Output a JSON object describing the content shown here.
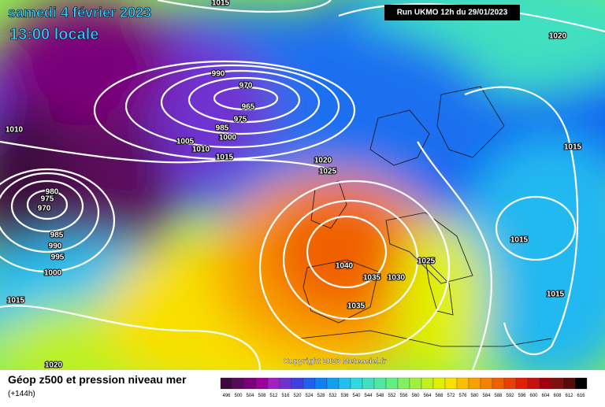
{
  "header": {
    "date": "samedi 4 février 2023",
    "time": "13:00 locale",
    "run": "Run UKMO 12h du 29/01/2023"
  },
  "isobars": {
    "labels": [
      "1015",
      "1020",
      "990",
      "970",
      "965",
      "975",
      "985",
      "1000",
      "1005",
      "1010",
      "1015",
      "1010",
      "1020",
      "1025",
      "980",
      "975",
      "970",
      "985",
      "990",
      "995",
      "1000",
      "1015",
      "1040",
      "1035",
      "1030",
      "1025",
      "1035",
      "1015",
      "1015",
      "1015",
      "1020"
    ]
  },
  "copyright": "Copyright 2023 Meteociel.fr",
  "footer": {
    "title": "Géop z500 et pression niveau mer",
    "lead": "(+144h)"
  },
  "legend": {
    "levels": [
      496,
      500,
      504,
      508,
      512,
      516,
      520,
      524,
      528,
      532,
      536,
      540,
      544,
      548,
      552,
      556,
      560,
      564,
      568,
      572,
      576,
      580,
      584,
      588,
      592,
      596,
      600,
      604,
      608,
      612,
      616
    ],
    "colors": [
      "#3c0a3c",
      "#5a0a5a",
      "#7a007a",
      "#9b009b",
      "#a020c0",
      "#7030d0",
      "#4040e0",
      "#2060f0",
      "#1080f0",
      "#10a0f0",
      "#20c0f0",
      "#30d8e0",
      "#40e0c0",
      "#50e8a0",
      "#60f080",
      "#80f060",
      "#a0f040",
      "#c0f020",
      "#e0f000",
      "#f8e000",
      "#f8c000",
      "#f8a000",
      "#f88000",
      "#f06000",
      "#e84000",
      "#e02000",
      "#c81010",
      "#a00010",
      "#801010",
      "#5a0a0a",
      "#000000"
    ]
  }
}
